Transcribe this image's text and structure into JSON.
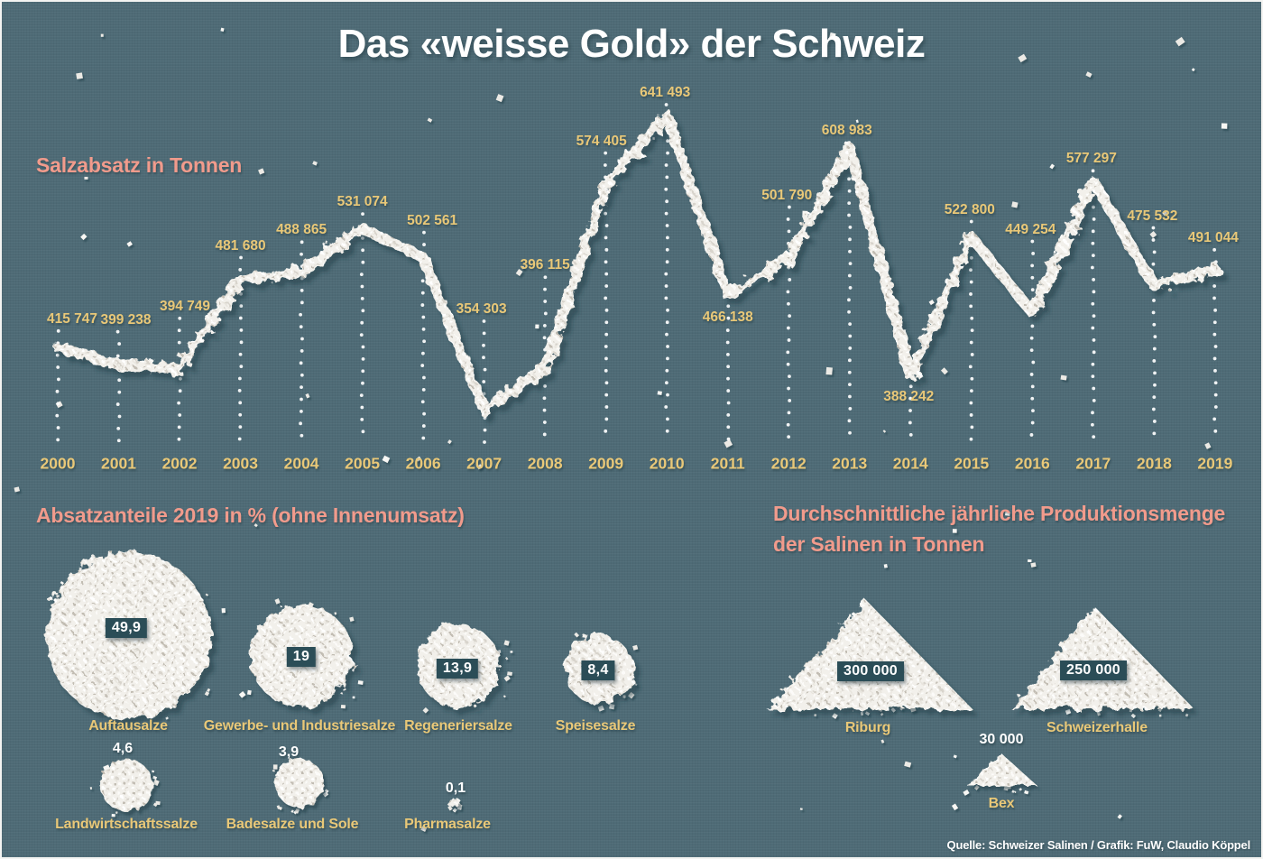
{
  "title": "Das «weisse Gold» der Schweiz",
  "colors": {
    "background": "#4f6c77",
    "accent_salmon": "#f19b8c",
    "accent_gold": "#e9c878",
    "badge_teal": "#2b4d57",
    "salt_white": "#f2f0eb",
    "text_white": "#ffffff"
  },
  "chart_data": [
    {
      "type": "line",
      "title": "Salzabsatz in Tonnen",
      "categories": [
        "2000",
        "2001",
        "2002",
        "2003",
        "2004",
        "2005",
        "2006",
        "2007",
        "2008",
        "2009",
        "2010",
        "2011",
        "2012",
        "2013",
        "2014",
        "2015",
        "2016",
        "2017",
        "2018",
        "2019"
      ],
      "values": [
        415747,
        399238,
        394749,
        481680,
        488865,
        531074,
        502561,
        354303,
        396115,
        574405,
        641493,
        466138,
        501790,
        608983,
        388242,
        522800,
        449254,
        577297,
        475532,
        491044
      ],
      "value_labels": [
        "415 747",
        "399 238",
        "394 749",
        "481 680",
        "488 865",
        "531 074",
        "502 561",
        "354 303",
        "396 115",
        "574 405",
        "641 493",
        "466 138",
        "501 790",
        "608 983",
        "388 242",
        "522 800",
        "449 254",
        "577 297",
        "475 532",
        "491 044"
      ],
      "ylim": [
        354303,
        641493
      ],
      "legend": "none",
      "grid": "dotted vertical leader lines from each point to the year axis",
      "style": "line drawn as white salt crystals"
    },
    {
      "type": "pie",
      "title": "Absatzanteile 2019 in % (ohne Innenumsatz)",
      "categories": [
        "Auftausalze",
        "Gewerbe- und Industriesalze",
        "Regeneriersalze",
        "Speisesalze",
        "Landwirtschaftssalze",
        "Badesalze und Sole",
        "Pharmasalze"
      ],
      "values": [
        49.9,
        19,
        13.9,
        8.4,
        4.6,
        3.9,
        0.1
      ],
      "value_labels": [
        "49,9",
        "19",
        "13,9",
        "8,4",
        "4,6",
        "3,9",
        "0,1"
      ],
      "style": "area-proportional round salt heaps, first four values shown in teal badges, last three as plain white text"
    },
    {
      "type": "bar",
      "title": "Durchschnittliche jährliche Produktionsmenge der Salinen in Tonnen",
      "title_lines": [
        "Durchschnittliche jährliche Produktionsmenge",
        "der Salinen in Tonnen"
      ],
      "categories": [
        "Riburg",
        "Schweizerhalle",
        "Bex"
      ],
      "values": [
        300000,
        250000,
        30000
      ],
      "value_labels": [
        "300 000",
        "250 000",
        "30 000"
      ],
      "style": "triangular salt piles, large values in teal badges, Bex as plain white text"
    }
  ],
  "footer": "Quelle: Schweizer Salinen / Grafik: FuW, Claudio Köppel"
}
